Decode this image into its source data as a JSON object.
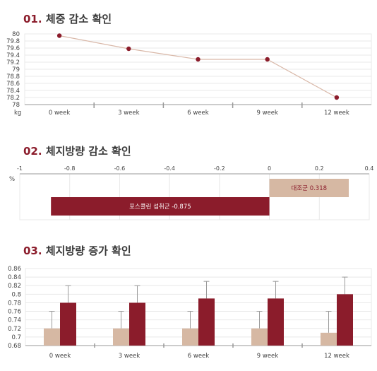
{
  "sections": [
    {
      "num": "01.",
      "title": "체중 감소 확인"
    },
    {
      "num": "02.",
      "title": "체지방량 감소 확인"
    },
    {
      "num": "03.",
      "title": "체지방량 증가 확인"
    }
  ],
  "colors": {
    "accent": "#8b1c2b",
    "beige": "#d6b8a3",
    "line": "#d9b8a8",
    "grid": "#e8e8e8",
    "title_number": "#8b1c2b"
  },
  "chart_data": [
    {
      "type": "line",
      "categories": [
        "0 week",
        "3 week",
        "6 week",
        "9 week",
        "12 week"
      ],
      "series": [
        {
          "values": [
            79.95,
            79.58,
            79.28,
            79.28,
            78.2
          ]
        }
      ],
      "ylim": [
        78,
        80
      ],
      "yticks": [
        "80",
        "79.8",
        "79.6",
        "79.4",
        "79.2",
        "79",
        "78.8",
        "78.6",
        "78.4",
        "78.2",
        "78"
      ],
      "yunit": "kg",
      "grid": true
    },
    {
      "type": "bar",
      "orientation": "horizontal",
      "unit": "%",
      "xlim": [
        -1,
        0.4
      ],
      "xticks": [
        "-1",
        "-0.8",
        "-0.6",
        "-0.4",
        "-0.2",
        "0",
        "0.2",
        "0.4"
      ],
      "bars": [
        {
          "name": "대조군",
          "value": 0.318,
          "label": "0.318"
        },
        {
          "name": "포스콜린 섭취군",
          "value": -0.875,
          "label": "-0.875"
        }
      ],
      "grid": true
    },
    {
      "type": "bar",
      "categories": [
        "0 week",
        "3 week",
        "6 week",
        "9 week",
        "12 week"
      ],
      "series": [
        {
          "values": [
            0.72,
            0.72,
            0.72,
            0.72,
            0.71
          ],
          "error_upper": [
            0.76,
            0.76,
            0.76,
            0.76,
            0.76
          ]
        },
        {
          "values": [
            0.78,
            0.78,
            0.79,
            0.79,
            0.8
          ],
          "error_upper": [
            0.82,
            0.82,
            0.83,
            0.83,
            0.84
          ]
        }
      ],
      "ylim": [
        0.68,
        0.86
      ],
      "yticks": [
        "0.86",
        "0.84",
        "0.82",
        "0.8",
        "0.78",
        "0.76",
        "0.74",
        "0.72",
        "0.7",
        "0.68"
      ],
      "grid": true
    }
  ]
}
